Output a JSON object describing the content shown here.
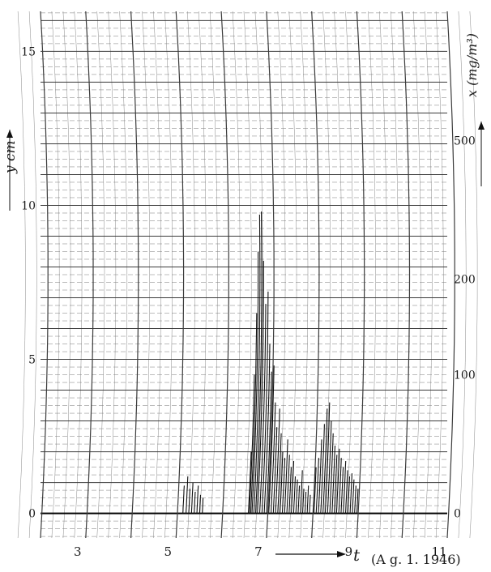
{
  "chart_data": {
    "type": "line",
    "title": "",
    "caption": "(A g. 1. 1946)",
    "xlabel": "t",
    "ylabel_left": "y cm",
    "ylabel_right": "x (mg/m³)",
    "x_ticks": [
      3,
      5,
      7,
      9,
      11
    ],
    "y_left_ticks": [
      0,
      5,
      10,
      15
    ],
    "y_right_ticks": [
      0,
      100,
      200,
      500
    ],
    "xlim": [
      2,
      11
    ],
    "ylim": [
      -0.8,
      16.3
    ],
    "grid": true,
    "scale_note": "curvilinear recording-chart grid; x axis in hours",
    "series": [
      {
        "trace_segments": [
          {
            "t": [
              5.15,
              5.22,
              5.28,
              5.34,
              5.4,
              5.46,
              5.52,
              5.58
            ],
            "y": [
              0.9,
              1.2,
              0.8,
              1.0,
              0.7,
              0.9,
              0.6,
              0.5
            ]
          },
          {
            "t": [
              6.6,
              6.62,
              6.65,
              6.68,
              6.72,
              6.76,
              6.8,
              6.85,
              6.9,
              6.95,
              7.0,
              7.05,
              7.1,
              7.15,
              7.2,
              7.25,
              7.3,
              7.35,
              7.4,
              7.45,
              7.5,
              7.55,
              7.6,
              7.65,
              7.7,
              7.75,
              7.8,
              7.85,
              7.9,
              7.95
            ],
            "y": [
              2.0,
              4.5,
              6.5,
              8.5,
              9.7,
              9.8,
              8.2,
              6.8,
              7.2,
              5.5,
              4.6,
              4.8,
              3.6,
              2.8,
              3.4,
              2.6,
              2.0,
              1.8,
              2.4,
              1.9,
              1.5,
              1.7,
              1.2,
              1.1,
              0.9,
              1.4,
              0.8,
              0.7,
              0.9,
              0.6
            ]
          },
          {
            "t": [
              8.05,
              8.1,
              8.15,
              8.2,
              8.25,
              8.3,
              8.35,
              8.4,
              8.45,
              8.5,
              8.55,
              8.6,
              8.65,
              8.7,
              8.75,
              8.8,
              8.85,
              8.9,
              8.95,
              9.0
            ],
            "y": [
              1.5,
              1.8,
              2.4,
              2.9,
              3.4,
              3.6,
              3.0,
              2.6,
              2.2,
              1.9,
              2.1,
              1.8,
              1.5,
              1.7,
              1.4,
              1.2,
              1.3,
              1.1,
              0.9,
              0.8
            ]
          }
        ]
      }
    ]
  },
  "meta_colors": {
    "grid": "#3b3b3b",
    "grid_minor": "#7a7a7a",
    "trace": "#111111",
    "paper": "#ffffff"
  }
}
